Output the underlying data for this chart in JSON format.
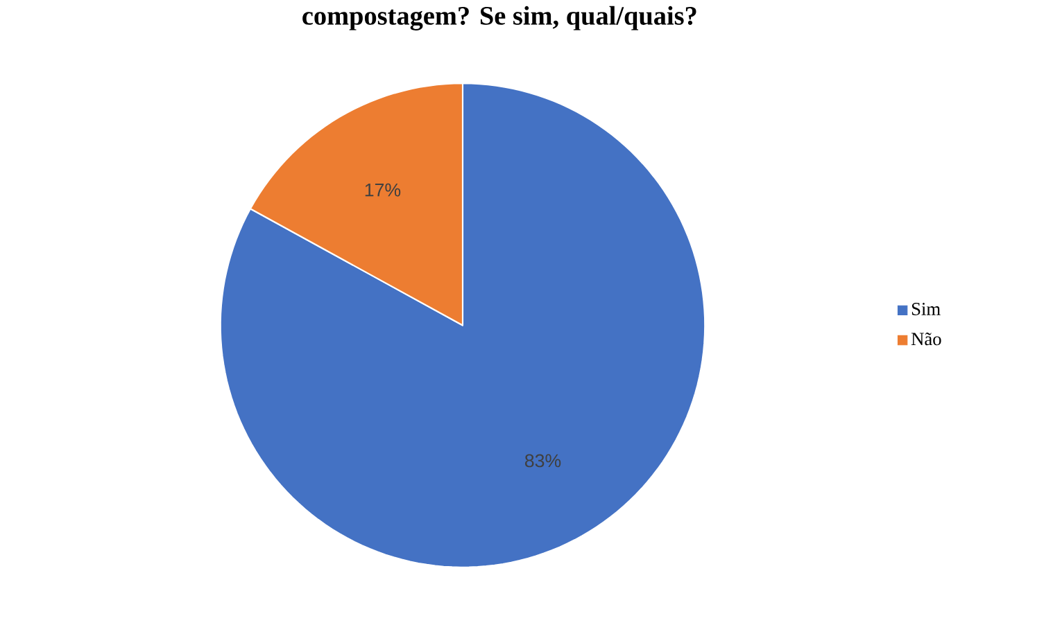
{
  "chart_data": {
    "type": "pie",
    "title": "compostagem? Se sim, qual/quais?",
    "categories": [
      "Sim",
      "Não"
    ],
    "values": [
      83,
      17
    ],
    "colors": [
      "#4472c4",
      "#ed7d31"
    ],
    "value_labels": [
      "83%",
      "17%"
    ],
    "legend": "right"
  }
}
